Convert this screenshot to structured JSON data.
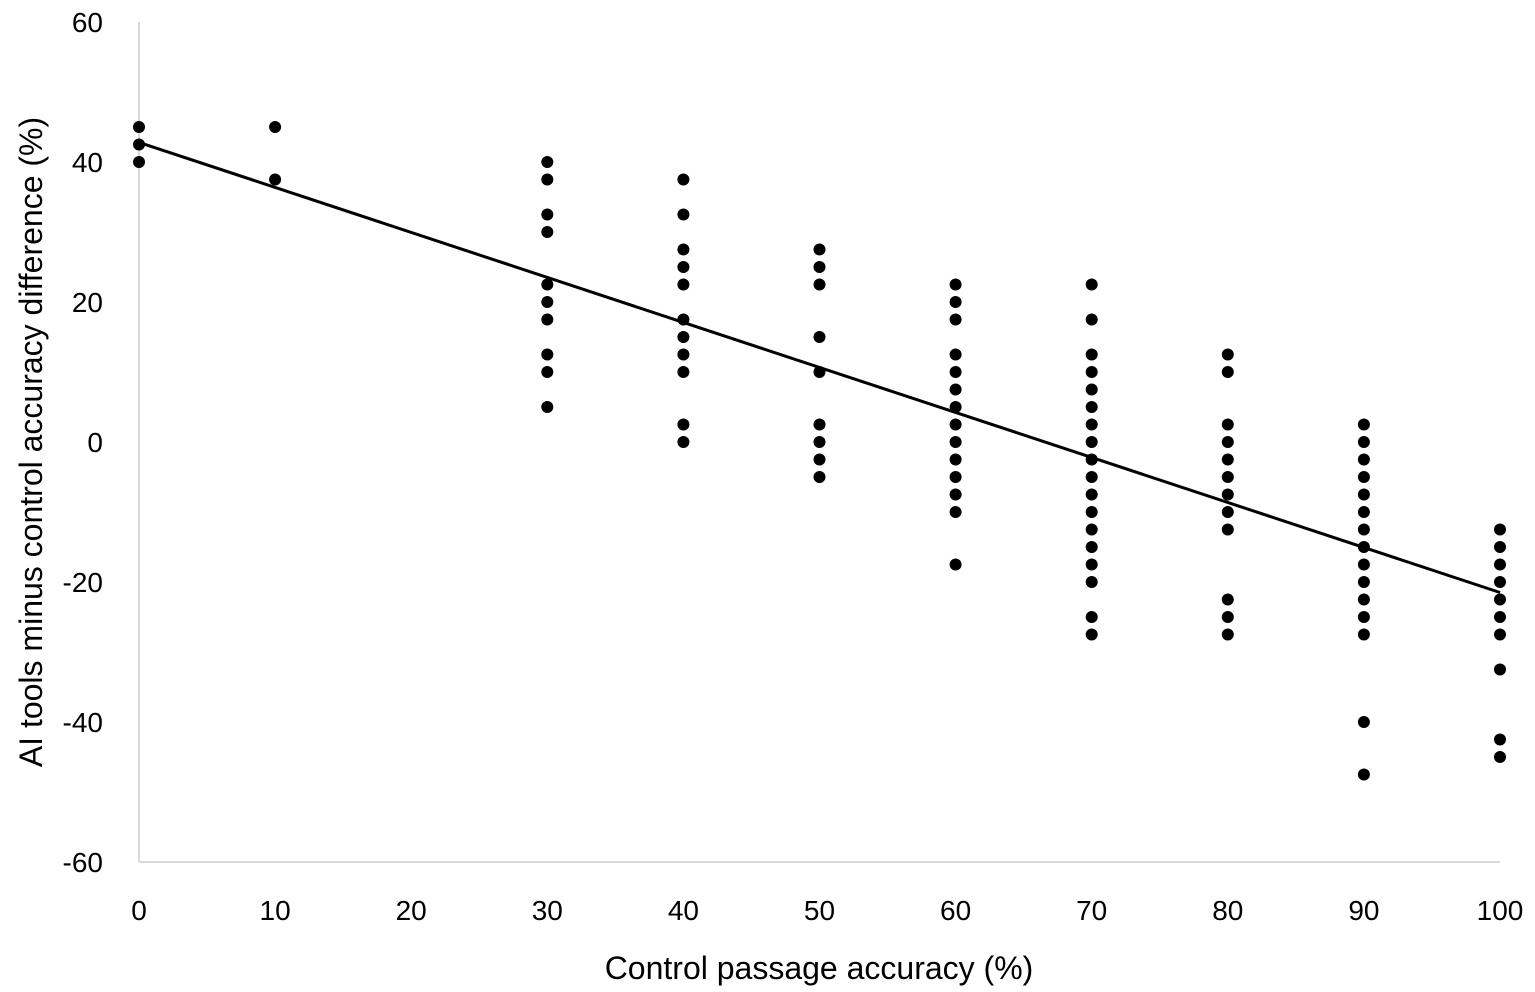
{
  "chart_data": {
    "type": "scatter",
    "title": "",
    "xlabel": "Control passage accuracy (%)",
    "ylabel": "AI tools minus control accuracy difference (%)",
    "xlim": [
      0,
      100
    ],
    "ylim": [
      -60,
      60
    ],
    "x_ticks": [
      0,
      10,
      20,
      30,
      40,
      50,
      60,
      70,
      80,
      90,
      100
    ],
    "y_ticks": [
      60,
      40,
      20,
      0,
      -20,
      -40,
      -60
    ],
    "grid": false,
    "legend": "none",
    "colors": {
      "points": "#000000",
      "trendline": "#000000",
      "axis": "#d9d9d9"
    },
    "points": [
      [
        0,
        45
      ],
      [
        0,
        42.5
      ],
      [
        0,
        40
      ],
      [
        10,
        45
      ],
      [
        10,
        37.5
      ],
      [
        30,
        40
      ],
      [
        30,
        37.5
      ],
      [
        30,
        32.5
      ],
      [
        30,
        30
      ],
      [
        30,
        22.5
      ],
      [
        30,
        20
      ],
      [
        30,
        17.5
      ],
      [
        30,
        12.5
      ],
      [
        30,
        10
      ],
      [
        30,
        5
      ],
      [
        40,
        37.5
      ],
      [
        40,
        32.5
      ],
      [
        40,
        27.5
      ],
      [
        40,
        25
      ],
      [
        40,
        22.5
      ],
      [
        40,
        17.5
      ],
      [
        40,
        15
      ],
      [
        40,
        12.5
      ],
      [
        40,
        10
      ],
      [
        40,
        2.5
      ],
      [
        40,
        0
      ],
      [
        50,
        27.5
      ],
      [
        50,
        25
      ],
      [
        50,
        22.5
      ],
      [
        50,
        15
      ],
      [
        50,
        10
      ],
      [
        50,
        2.5
      ],
      [
        50,
        0
      ],
      [
        50,
        -2.5
      ],
      [
        50,
        -5
      ],
      [
        60,
        22.5
      ],
      [
        60,
        20
      ],
      [
        60,
        17.5
      ],
      [
        60,
        12.5
      ],
      [
        60,
        10
      ],
      [
        60,
        7.5
      ],
      [
        60,
        5
      ],
      [
        60,
        2.5
      ],
      [
        60,
        0
      ],
      [
        60,
        -2.5
      ],
      [
        60,
        -5
      ],
      [
        60,
        -7.5
      ],
      [
        60,
        -10
      ],
      [
        60,
        -17.5
      ],
      [
        70,
        22.5
      ],
      [
        70,
        17.5
      ],
      [
        70,
        12.5
      ],
      [
        70,
        10
      ],
      [
        70,
        7.5
      ],
      [
        70,
        5
      ],
      [
        70,
        2.5
      ],
      [
        70,
        0
      ],
      [
        70,
        -2.5
      ],
      [
        70,
        -5
      ],
      [
        70,
        -7.5
      ],
      [
        70,
        -10
      ],
      [
        70,
        -12.5
      ],
      [
        70,
        -15
      ],
      [
        70,
        -17.5
      ],
      [
        70,
        -20
      ],
      [
        70,
        -25
      ],
      [
        70,
        -27.5
      ],
      [
        80,
        12.5
      ],
      [
        80,
        10
      ],
      [
        80,
        2.5
      ],
      [
        80,
        0
      ],
      [
        80,
        -2.5
      ],
      [
        80,
        -5
      ],
      [
        80,
        -7.5
      ],
      [
        80,
        -10
      ],
      [
        80,
        -12.5
      ],
      [
        80,
        -22.5
      ],
      [
        80,
        -25
      ],
      [
        80,
        -27.5
      ],
      [
        90,
        2.5
      ],
      [
        90,
        0
      ],
      [
        90,
        -2.5
      ],
      [
        90,
        -5
      ],
      [
        90,
        -7.5
      ],
      [
        90,
        -10
      ],
      [
        90,
        -12.5
      ],
      [
        90,
        -15
      ],
      [
        90,
        -17.5
      ],
      [
        90,
        -20
      ],
      [
        90,
        -22.5
      ],
      [
        90,
        -25
      ],
      [
        90,
        -27.5
      ],
      [
        90,
        -40
      ],
      [
        90,
        -47.5
      ],
      [
        100,
        -12.5
      ],
      [
        100,
        -15
      ],
      [
        100,
        -17.5
      ],
      [
        100,
        -20
      ],
      [
        100,
        -22.5
      ],
      [
        100,
        -25
      ],
      [
        100,
        -27.5
      ],
      [
        100,
        -32.5
      ],
      [
        100,
        -42.5
      ],
      [
        100,
        -45
      ]
    ],
    "trendline": {
      "type": "linear",
      "from": [
        0,
        42.8
      ],
      "to": [
        100,
        -21.5
      ]
    }
  }
}
